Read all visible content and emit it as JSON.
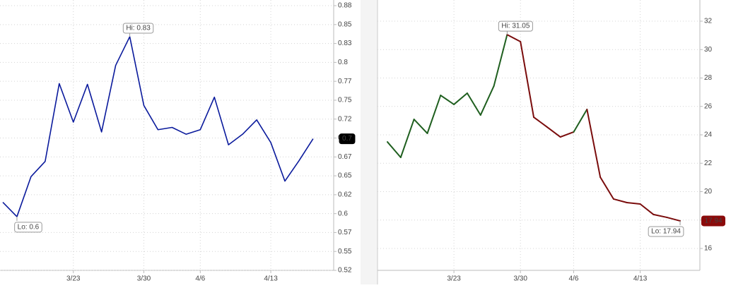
{
  "chart_data": [
    {
      "type": "line",
      "categories": [
        null,
        null,
        null,
        null,
        null,
        "3/23",
        null,
        null,
        null,
        null,
        "3/30",
        null,
        null,
        null,
        "4/6",
        null,
        null,
        null,
        null,
        "4/13",
        null,
        null,
        null
      ],
      "series": [
        {
          "color": "#0a1a9c",
          "values": [
            0.615,
            0.596,
            0.649,
            0.669,
            0.772,
            0.721,
            0.771,
            0.708,
            0.796,
            0.834,
            0.743,
            0.711,
            0.714,
            0.705,
            0.711,
            0.754,
            0.691,
            0.705,
            0.724,
            0.694,
            0.643,
            0.67,
            0.699
          ]
        }
      ],
      "ylim": [
        0.525,
        0.8825
      ],
      "yticks": [
        {
          "value": 0.525,
          "label": "0.52"
        },
        0.55,
        {
          "value": 0.575,
          "label": "0.57"
        },
        0.6,
        {
          "value": 0.625,
          "label": "0.62"
        },
        0.65,
        {
          "value": 0.675,
          "label": "0.67"
        },
        0.7,
        {
          "value": 0.725,
          "label": "0.72"
        },
        0.75,
        {
          "value": 0.775,
          "label": "0.77"
        },
        0.8,
        {
          "value": 0.825,
          "label": "0.83"
        },
        0.85,
        {
          "value": 0.875,
          "label": "0.88"
        }
      ],
      "grid": true,
      "hi_label": "Hi: 0.83",
      "lo_label": "Lo: 0.6",
      "last_label": "0.7",
      "last_color": "#000000"
    },
    {
      "type": "line",
      "categories": [
        null,
        null,
        null,
        null,
        null,
        "3/23",
        null,
        null,
        null,
        null,
        "3/30",
        null,
        null,
        null,
        "4/6",
        null,
        null,
        null,
        null,
        "4/13",
        null,
        null,
        null
      ],
      "series": [
        {
          "color": "#1f5f1f",
          "segment_colors": [
            "#1f5f1f",
            "#1f5f1f",
            "#1f5f1f",
            "#1f5f1f",
            "#1f5f1f",
            "#1f5f1f",
            "#1f5f1f",
            "#1f5f1f",
            "#1f5f1f",
            "#7a0c0c",
            "#7a0c0c",
            "#7a0c0c",
            "#7a0c0c",
            "#7a0c0c",
            "#1f5f1f",
            "#7a0c0c",
            "#7a0c0c",
            "#7a0c0c",
            "#7a0c0c",
            "#7a0c0c",
            "#7a0c0c",
            "#7a0c0c"
          ],
          "values": [
            23.5,
            22.41,
            25.09,
            24.1,
            26.78,
            26.14,
            26.93,
            25.39,
            27.43,
            31.05,
            30.56,
            25.24,
            24.55,
            23.85,
            24.2,
            25.79,
            21.02,
            19.48,
            19.23,
            19.13,
            18.39,
            18.19,
            17.94
          ]
        }
      ],
      "ylim": [
        14.46,
        33.49
      ],
      "yticks": [
        16,
        18,
        20,
        22,
        24,
        26,
        28,
        30,
        32
      ],
      "grid": true,
      "hi_label": "Hi: 31.05",
      "lo_label": "Lo: 17.94",
      "last_label": "17.94",
      "last_color": "#8b0a0a"
    }
  ]
}
